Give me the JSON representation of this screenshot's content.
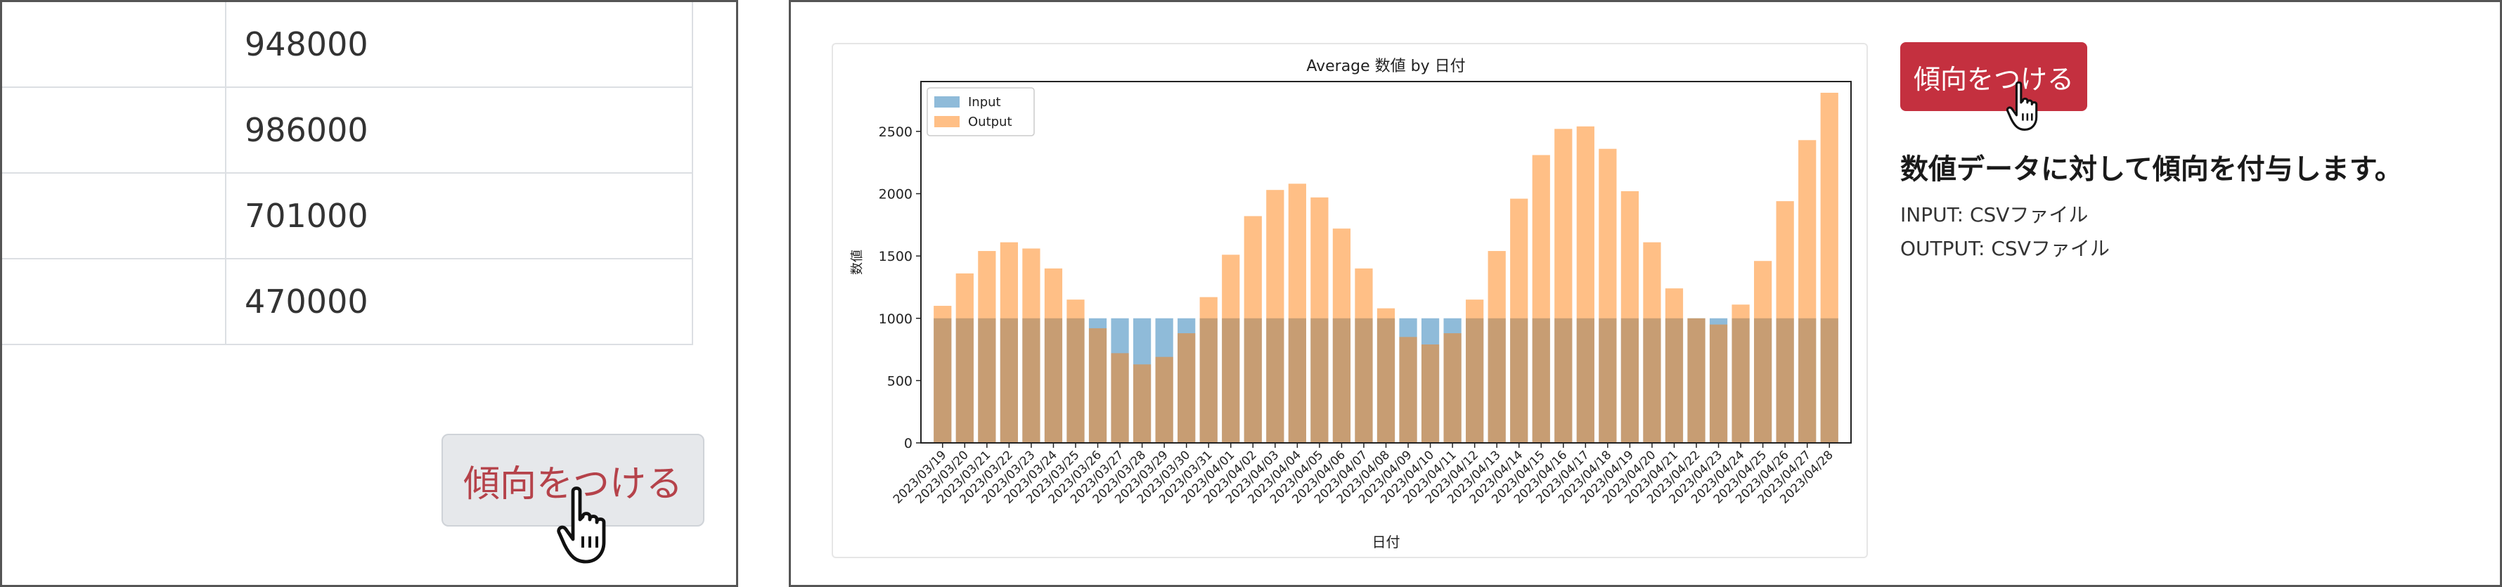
{
  "left_panel": {
    "table_values": [
      "948000",
      "986000",
      "701000",
      "470000"
    ],
    "button_label": "傾向をつける"
  },
  "right_panel": {
    "button_label": "傾向をつける",
    "description_title": "数値データに対して傾向を付与します。",
    "input_line": "INPUT: CSVファイル",
    "output_line": "OUTPUT: CSVファイル"
  },
  "colors": {
    "input": "#1f77b4",
    "output": "#ff7f0e",
    "button_red": "#c4303f"
  },
  "chart_data": {
    "type": "bar",
    "title": "Average 数値 by 日付",
    "xlabel": "日付",
    "ylabel": "数値",
    "ylim": [
      0,
      2900
    ],
    "yticks": [
      0,
      500,
      1000,
      1500,
      2000,
      2500
    ],
    "legend_position": "top-left",
    "categories": [
      "2023/03/19",
      "2023/03/20",
      "2023/03/21",
      "2023/03/22",
      "2023/03/23",
      "2023/03/24",
      "2023/03/25",
      "2023/03/26",
      "2023/03/27",
      "2023/03/28",
      "2023/03/29",
      "2023/03/30",
      "2023/03/31",
      "2023/04/01",
      "2023/04/02",
      "2023/04/03",
      "2023/04/04",
      "2023/04/05",
      "2023/04/06",
      "2023/04/07",
      "2023/04/08",
      "2023/04/09",
      "2023/04/10",
      "2023/04/11",
      "2023/04/12",
      "2023/04/13",
      "2023/04/14",
      "2023/04/15",
      "2023/04/16",
      "2023/04/17",
      "2023/04/18",
      "2023/04/19",
      "2023/04/20",
      "2023/04/21",
      "2023/04/22",
      "2023/04/23",
      "2023/04/24",
      "2023/04/25",
      "2023/04/26",
      "2023/04/27",
      "2023/04/28"
    ],
    "series": [
      {
        "name": "Input",
        "values": [
          1000,
          1000,
          1000,
          1000,
          1000,
          1000,
          1000,
          1000,
          1000,
          1000,
          1000,
          1000,
          1000,
          1000,
          1000,
          1000,
          1000,
          1000,
          1000,
          1000,
          1000,
          1000,
          1000,
          1000,
          1000,
          1000,
          1000,
          1000,
          1000,
          1000,
          1000,
          1000,
          1000,
          1000,
          1000,
          1000,
          1000,
          1000,
          1000,
          1000,
          1000
        ]
      },
      {
        "name": "Output",
        "values": [
          1100,
          1360,
          1540,
          1610,
          1560,
          1400,
          1150,
          920,
          720,
          630,
          690,
          880,
          1170,
          1510,
          1820,
          2030,
          2080,
          1970,
          1720,
          1400,
          1080,
          850,
          790,
          880,
          1150,
          1540,
          1960,
          2310,
          2520,
          2540,
          2360,
          2020,
          1610,
          1240,
          1000,
          950,
          1110,
          1460,
          1940,
          2430,
          2810
        ]
      }
    ]
  }
}
